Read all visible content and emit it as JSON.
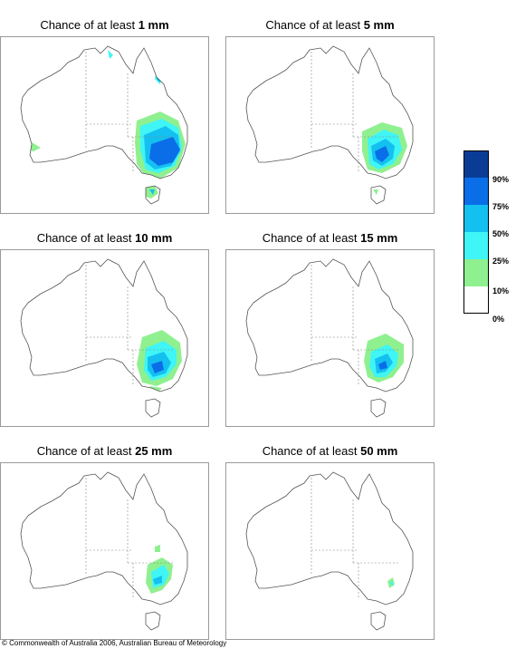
{
  "panels": [
    {
      "prefix": "Chance of at least ",
      "amount": "1 mm"
    },
    {
      "prefix": "Chance of at least ",
      "amount": "5 mm"
    },
    {
      "prefix": "Chance of at least ",
      "amount": "10 mm"
    },
    {
      "prefix": "Chance of at least ",
      "amount": "15 mm"
    },
    {
      "prefix": "Chance of at least ",
      "amount": "25 mm"
    },
    {
      "prefix": "Chance of at least ",
      "amount": "50 mm"
    }
  ],
  "legend": {
    "bands": [
      {
        "color": "#0a3c96"
      },
      {
        "color": "#0a6ee8"
      },
      {
        "color": "#14c0f0"
      },
      {
        "color": "#3ff5f5"
      },
      {
        "color": "#8ff08f"
      },
      {
        "color": "#ffffff"
      }
    ],
    "labels": [
      "90%",
      "75%",
      "50%",
      "25%",
      "10%",
      "0%"
    ]
  },
  "colors": {
    "c10": "#8ff08f",
    "c25": "#3ff5f5",
    "c50": "#14c0f0",
    "c75": "#0a6ee8",
    "c90": "#0a3c96",
    "border": "#9a9a9a",
    "coast": "#555555"
  },
  "copyright": "© Commonwealth of Australia 2006, Australian Bureau of Meteorology"
}
